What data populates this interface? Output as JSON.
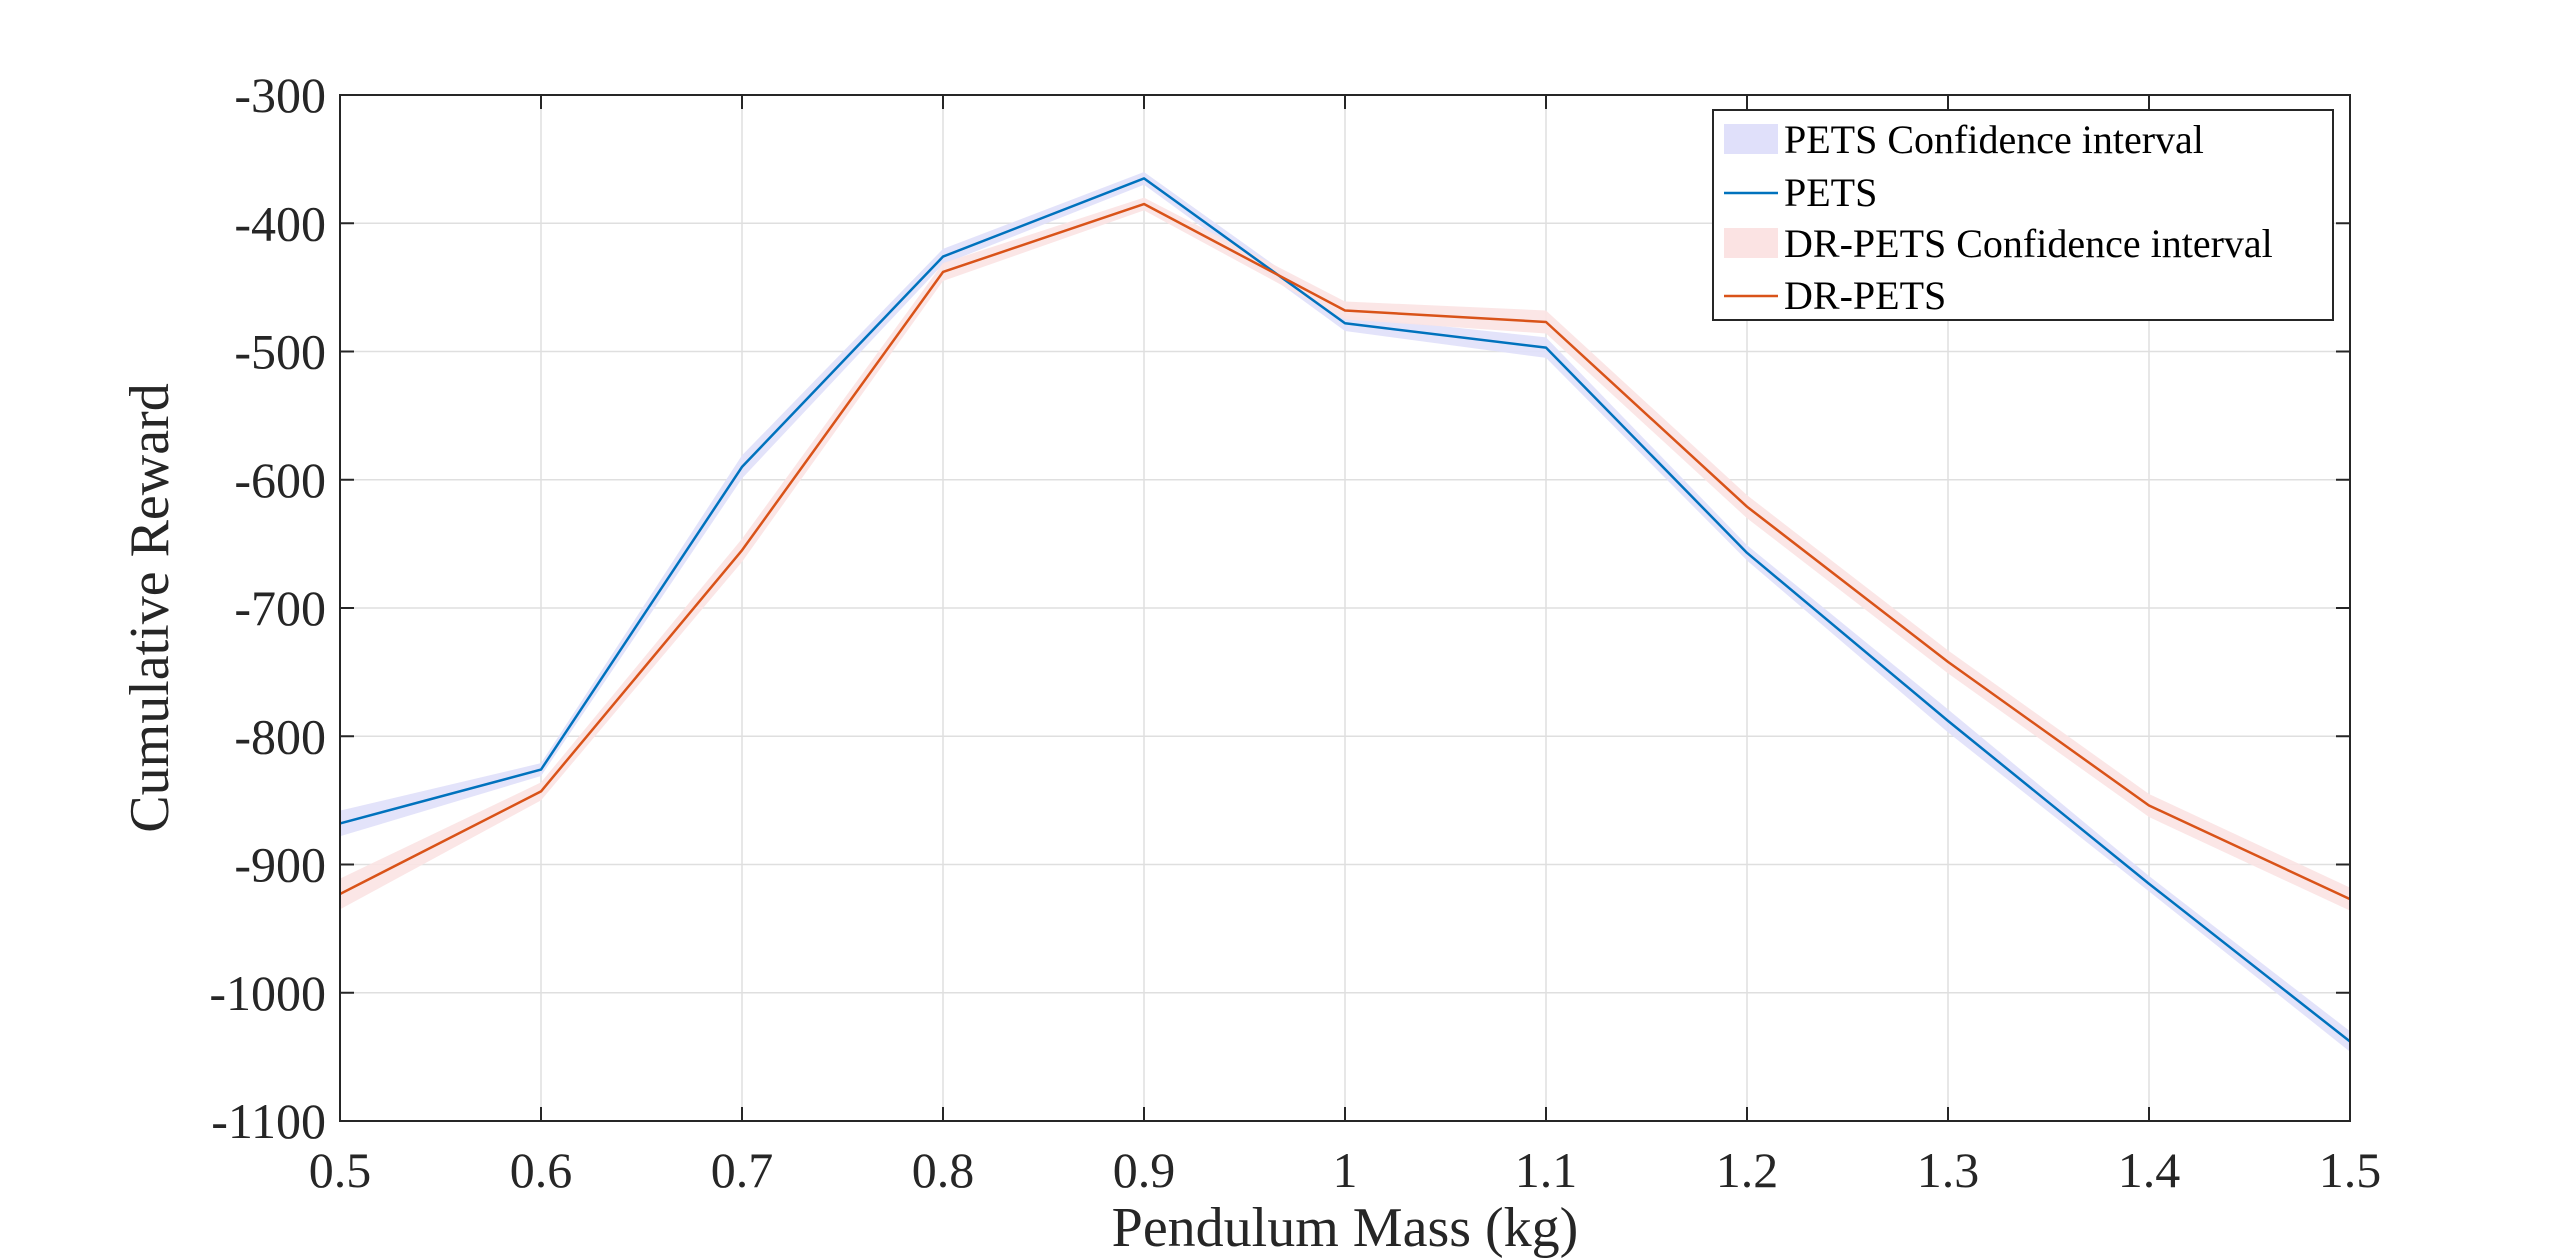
{
  "chart_data": {
    "type": "line",
    "title": "",
    "xlabel": "Pendulum Mass (kg)",
    "ylabel": "Cumulative Reward",
    "xlim": [
      0.5,
      1.5
    ],
    "ylim": [
      -1100,
      -300
    ],
    "grid": true,
    "legend_position": "top-right",
    "x_ticks": [
      0.5,
      0.6,
      0.7,
      0.8,
      0.9,
      1.0,
      1.1,
      1.2,
      1.3,
      1.4,
      1.5
    ],
    "x_tick_labels": [
      "0.5",
      "0.6",
      "0.7",
      "0.8",
      "0.9",
      "1",
      "1.1",
      "1.2",
      "1.3",
      "1.4",
      "1.5"
    ],
    "y_ticks": [
      -300,
      -400,
      -500,
      -600,
      -700,
      -800,
      -900,
      -1000,
      -1100
    ],
    "y_tick_labels": [
      "-300",
      "-400",
      "-500",
      "-600",
      "-700",
      "-800",
      "-900",
      "-1000",
      "-1100"
    ],
    "x": [
      0.5,
      0.6,
      0.7,
      0.8,
      0.9,
      1.0,
      1.1,
      1.2,
      1.3,
      1.4,
      1.5
    ],
    "series": [
      {
        "name": "PETS",
        "band_name": "PETS Confidence interval",
        "color": "#0072BD",
        "band_color": "#E0E0FA",
        "values": [
          -868,
          -826,
          -590,
          -426,
          -365,
          -478,
          -497,
          -657,
          -788,
          -915,
          -1038
        ],
        "band_halfwidth": [
          10,
          5,
          9,
          6,
          5,
          6,
          8,
          6,
          9,
          6,
          8
        ]
      },
      {
        "name": "DR-PETS",
        "band_name": "DR-PETS Confidence interval",
        "color": "#D95319",
        "band_color": "#FBE3E3",
        "values": [
          -923,
          -843,
          -655,
          -438,
          -385,
          -468,
          -477,
          -621,
          -742,
          -854,
          -927
        ],
        "band_halfwidth": [
          12,
          7,
          9,
          7,
          5,
          7,
          9,
          9,
          9,
          9,
          9
        ]
      }
    ]
  }
}
